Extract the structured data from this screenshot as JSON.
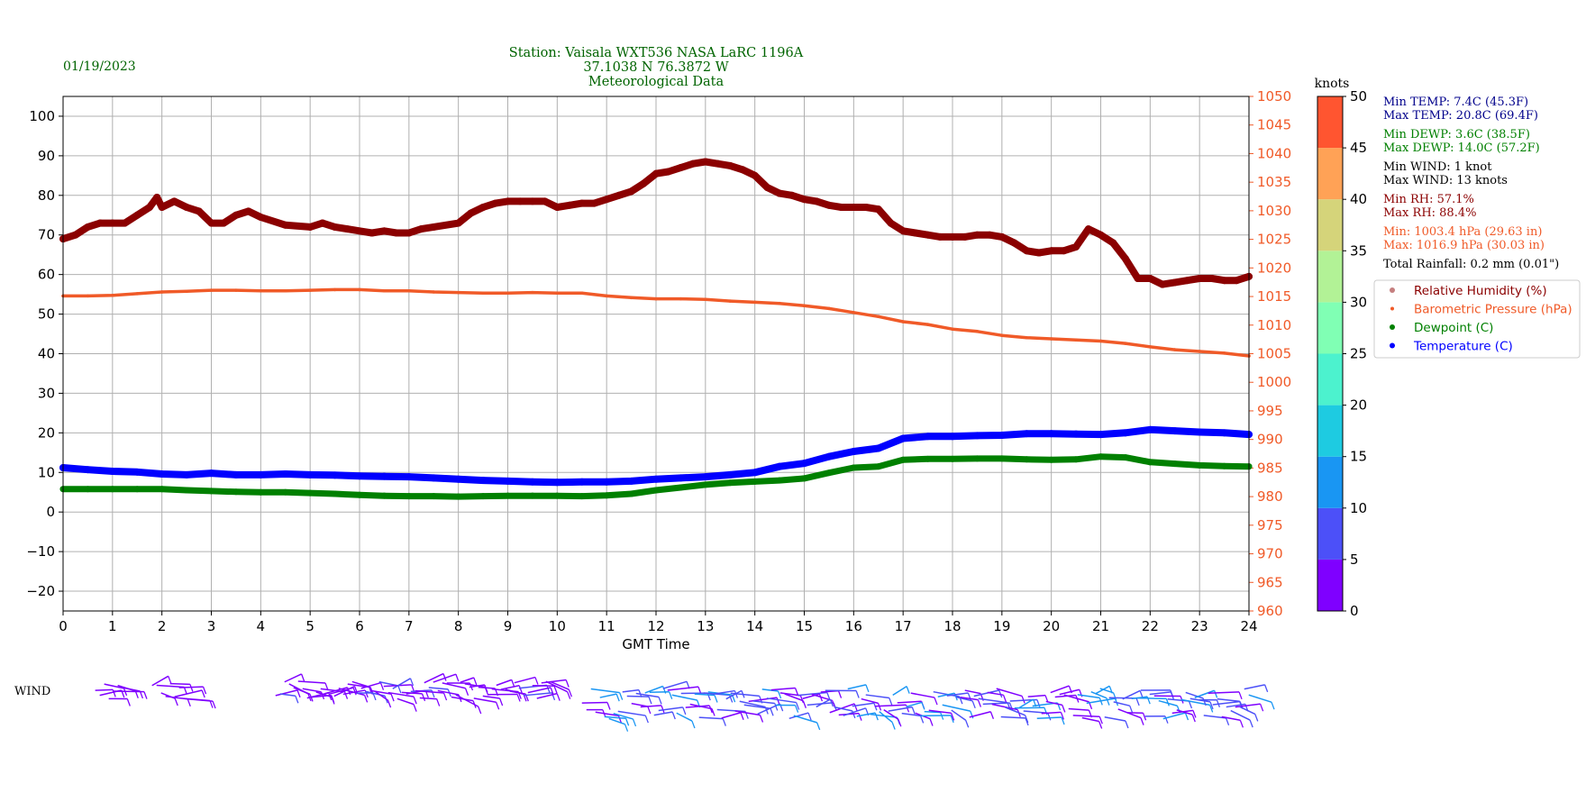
{
  "header": {
    "date": "01/19/2023",
    "title_lines": [
      "Station:  Vaisala WXT536  NASA LaRC 1196A",
      "37.1038 N 76.3872 W",
      "Meteorological Data"
    ]
  },
  "stats": {
    "lines": [
      {
        "text": "Min TEMP: 7.4C (45.3F)",
        "color": "#00008b"
      },
      {
        "text": "Max TEMP: 20.8C (69.4F)",
        "color": "#00008b"
      },
      {
        "text": "Min DEWP: 3.6C (38.5F)",
        "color": "#008000"
      },
      {
        "text": "Max DEWP: 14.0C (57.2F)",
        "color": "#008000"
      },
      {
        "text": "Min WIND: 1 knot",
        "color": "#000000"
      },
      {
        "text": "Max WIND: 13 knots",
        "color": "#000000"
      },
      {
        "text": "Min RH: 57.1%",
        "color": "#8b0000"
      },
      {
        "text": "Max RH: 88.4%",
        "color": "#8b0000"
      },
      {
        "text": "Min: 1003.4 hPa (29.63 in)",
        "color": "#f05a28"
      },
      {
        "text": "Max: 1016.9 hPa (30.03 in)",
        "color": "#f05a28"
      },
      {
        "text": "Total Rainfall: 0.2 mm (0.01\")",
        "color": "#000000"
      }
    ]
  },
  "legend": {
    "items": [
      {
        "label": "Relative Humidity (%)",
        "color": "#8b0000",
        "marker": "rh-dot"
      },
      {
        "label": "Barometric Pressure (hPa)",
        "color": "#f05a28",
        "marker": "pressure-dot"
      },
      {
        "label": "Dewpoint (C)",
        "color": "#008000",
        "marker": "dewpoint-dot"
      },
      {
        "label": "Temperature (C)",
        "color": "#0000ff",
        "marker": "temperature-dot"
      }
    ]
  },
  "wind_label": "WIND",
  "colorbar": {
    "title": "knots",
    "ticks": [
      0,
      5,
      10,
      15,
      20,
      25,
      30,
      35,
      40,
      45,
      50
    ],
    "colors": [
      "#7f00ff",
      "#4c50f8",
      "#1996f3",
      "#1ecbe1",
      "#4cf2ce",
      "#80ffb4",
      "#b2f296",
      "#d5d47a",
      "#ffa256",
      "#ff5530",
      "#ff0000"
    ]
  },
  "chart_data": {
    "type": "line",
    "xlabel": "GMT Time",
    "x_ticks": [
      0,
      1,
      2,
      3,
      4,
      5,
      6,
      7,
      8,
      9,
      10,
      11,
      12,
      13,
      14,
      15,
      16,
      17,
      18,
      19,
      20,
      21,
      22,
      23,
      24
    ],
    "xlim": [
      0,
      24
    ],
    "left_axis": {
      "ylim": [
        -25,
        105
      ],
      "ticks": [
        -20,
        -10,
        0,
        10,
        20,
        30,
        40,
        50,
        60,
        70,
        80,
        90,
        100
      ]
    },
    "right_axis": {
      "ylim": [
        960,
        1050
      ],
      "ticks": [
        960,
        965,
        970,
        975,
        980,
        985,
        990,
        995,
        1000,
        1005,
        1010,
        1015,
        1020,
        1025,
        1030,
        1035,
        1040,
        1045,
        1050
      ],
      "color": "#f05a28"
    },
    "grid": true,
    "series": [
      {
        "name": "Relative Humidity (%)",
        "axis": "left",
        "color": "#8b0000",
        "x": [
          0,
          0.25,
          0.5,
          0.75,
          1,
          1.25,
          1.5,
          1.75,
          1.9,
          2,
          2.25,
          2.5,
          2.75,
          3,
          3.25,
          3.5,
          3.75,
          4,
          4.5,
          5,
          5.25,
          5.5,
          5.75,
          6,
          6.25,
          6.5,
          6.75,
          7,
          7.25,
          7.5,
          8,
          8.25,
          8.5,
          8.75,
          9,
          9.25,
          9.5,
          9.75,
          10,
          10.25,
          10.5,
          10.75,
          11,
          11.25,
          11.5,
          11.75,
          12,
          12.25,
          12.5,
          12.75,
          13,
          13.25,
          13.5,
          13.75,
          14,
          14.25,
          14.5,
          14.75,
          15,
          15.25,
          15.5,
          15.75,
          16,
          16.25,
          16.5,
          16.75,
          17,
          17.25,
          17.5,
          17.75,
          18,
          18.25,
          18.5,
          18.75,
          19,
          19.25,
          19.5,
          19.75,
          20,
          20.25,
          20.5,
          20.75,
          21,
          21.25,
          21.5,
          21.75,
          22,
          22.25,
          22.5,
          22.75,
          23,
          23.25,
          23.5,
          23.75,
          24
        ],
        "y": [
          69,
          70,
          72,
          73,
          73,
          73,
          75,
          77,
          79.5,
          77,
          78.5,
          77,
          76,
          73,
          73,
          75,
          76,
          74.5,
          72.5,
          72,
          73,
          72,
          71.5,
          71,
          70.5,
          71,
          70.5,
          70.5,
          71.5,
          72,
          73,
          75.5,
          77,
          78,
          78.5,
          78.5,
          78.5,
          78.5,
          77,
          77.5,
          78,
          78,
          79,
          80,
          81,
          83,
          85.5,
          86,
          87,
          88,
          88.5,
          88,
          87.5,
          86.5,
          85,
          82,
          80.5,
          80,
          79,
          78.5,
          77.5,
          77,
          77,
          77,
          76.5,
          73,
          71,
          70.5,
          70,
          69.5,
          69.5,
          69.5,
          70,
          70,
          69.5,
          68,
          66,
          65.5,
          66,
          66,
          67,
          71.5,
          70,
          68,
          64,
          59,
          59,
          57.5,
          58,
          58.5,
          59,
          59,
          58.5,
          58.5,
          59.5
        ]
      },
      {
        "name": "Barometric Pressure (hPa)",
        "axis": "right",
        "color": "#f05a28",
        "x": [
          0,
          0.5,
          1,
          1.5,
          2,
          2.5,
          3,
          3.5,
          4,
          4.5,
          5,
          5.5,
          6,
          6.5,
          7,
          7.5,
          8,
          8.5,
          9,
          9.5,
          10,
          10.5,
          11,
          11.5,
          12,
          12.5,
          13,
          13.5,
          14,
          14.5,
          15,
          15.5,
          16,
          16.5,
          17,
          17.5,
          18,
          18.5,
          19,
          19.5,
          20,
          20.5,
          21,
          21.5,
          22,
          22.5,
          23,
          23.5,
          24
        ],
        "y": [
          1015.1,
          1015.1,
          1015.2,
          1015.5,
          1015.8,
          1015.9,
          1016.1,
          1016.1,
          1016.0,
          1016.0,
          1016.1,
          1016.2,
          1016.2,
          1016.0,
          1016.0,
          1015.8,
          1015.7,
          1015.6,
          1015.6,
          1015.7,
          1015.6,
          1015.6,
          1015.1,
          1014.8,
          1014.6,
          1014.6,
          1014.5,
          1014.2,
          1014.0,
          1013.8,
          1013.4,
          1012.9,
          1012.2,
          1011.5,
          1010.6,
          1010.1,
          1009.3,
          1008.9,
          1008.2,
          1007.8,
          1007.6,
          1007.4,
          1007.2,
          1006.8,
          1006.2,
          1005.7,
          1005.4,
          1005.1,
          1004.6
        ]
      },
      {
        "name": "Dewpoint (C)",
        "axis": "left",
        "color": "#008000",
        "x": [
          0,
          0.5,
          1,
          1.5,
          2,
          2.5,
          3,
          3.5,
          4,
          4.5,
          5,
          5.5,
          6,
          6.5,
          7,
          7.5,
          8,
          8.5,
          9,
          9.5,
          10,
          10.5,
          11,
          11.5,
          12,
          12.5,
          13,
          13.5,
          14,
          14.5,
          15,
          15.5,
          16,
          16.5,
          17,
          17.5,
          18,
          18.5,
          19,
          19.5,
          20,
          20.5,
          21,
          21.5,
          22,
          22.5,
          23,
          23.5,
          24
        ],
        "y": [
          5.8,
          5.8,
          5.8,
          5.8,
          5.8,
          5.5,
          5.3,
          5.1,
          5.0,
          5.0,
          4.8,
          4.6,
          4.3,
          4.1,
          4.0,
          4.0,
          3.9,
          4.0,
          4.1,
          4.1,
          4.1,
          4.0,
          4.2,
          4.6,
          5.5,
          6.2,
          6.9,
          7.4,
          7.7,
          8.0,
          8.5,
          9.9,
          11.2,
          11.5,
          13.2,
          13.4,
          13.4,
          13.5,
          13.5,
          13.3,
          13.2,
          13.3,
          14.0,
          13.8,
          12.6,
          12.2,
          11.8,
          11.6,
          11.5
        ]
      },
      {
        "name": "Temperature (C)",
        "axis": "left",
        "color": "#0000ff",
        "x": [
          0,
          0.5,
          1,
          1.5,
          2,
          2.5,
          3,
          3.5,
          4,
          4.5,
          5,
          5.5,
          6,
          6.5,
          7,
          7.5,
          8,
          8.5,
          9,
          9.5,
          10,
          10.5,
          11,
          11.5,
          12,
          12.5,
          13,
          13.5,
          14,
          14.5,
          15,
          15.5,
          16,
          16.5,
          17,
          17.5,
          18,
          18.5,
          19,
          19.5,
          20,
          20.5,
          21,
          21.5,
          22,
          22.5,
          23,
          23.5,
          24
        ],
        "y": [
          11.2,
          10.7,
          10.3,
          10.1,
          9.6,
          9.4,
          9.8,
          9.4,
          9.4,
          9.6,
          9.4,
          9.3,
          9.1,
          9.0,
          8.9,
          8.6,
          8.3,
          8.0,
          7.8,
          7.6,
          7.5,
          7.6,
          7.6,
          7.8,
          8.3,
          8.6,
          8.9,
          9.4,
          10.0,
          11.5,
          12.3,
          14.0,
          15.3,
          16.1,
          18.6,
          19.1,
          19.1,
          19.3,
          19.4,
          19.8,
          19.8,
          19.7,
          19.6,
          20.0,
          20.8,
          20.5,
          20.2,
          20.0,
          19.6
        ]
      }
    ],
    "wind": {
      "segments": [
        {
          "x": [
            0.65,
            1.2
          ],
          "speed_knots": [
            1,
            3
          ]
        },
        {
          "x": [
            1.8,
            2.6
          ],
          "speed_knots": [
            1,
            4
          ]
        },
        {
          "x": [
            4.3,
            9.9
          ],
          "speed_knots": [
            1,
            6
          ]
        },
        {
          "x": [
            10.5,
            24.0
          ],
          "speed_knots": [
            1,
            13
          ]
        }
      ]
    }
  }
}
